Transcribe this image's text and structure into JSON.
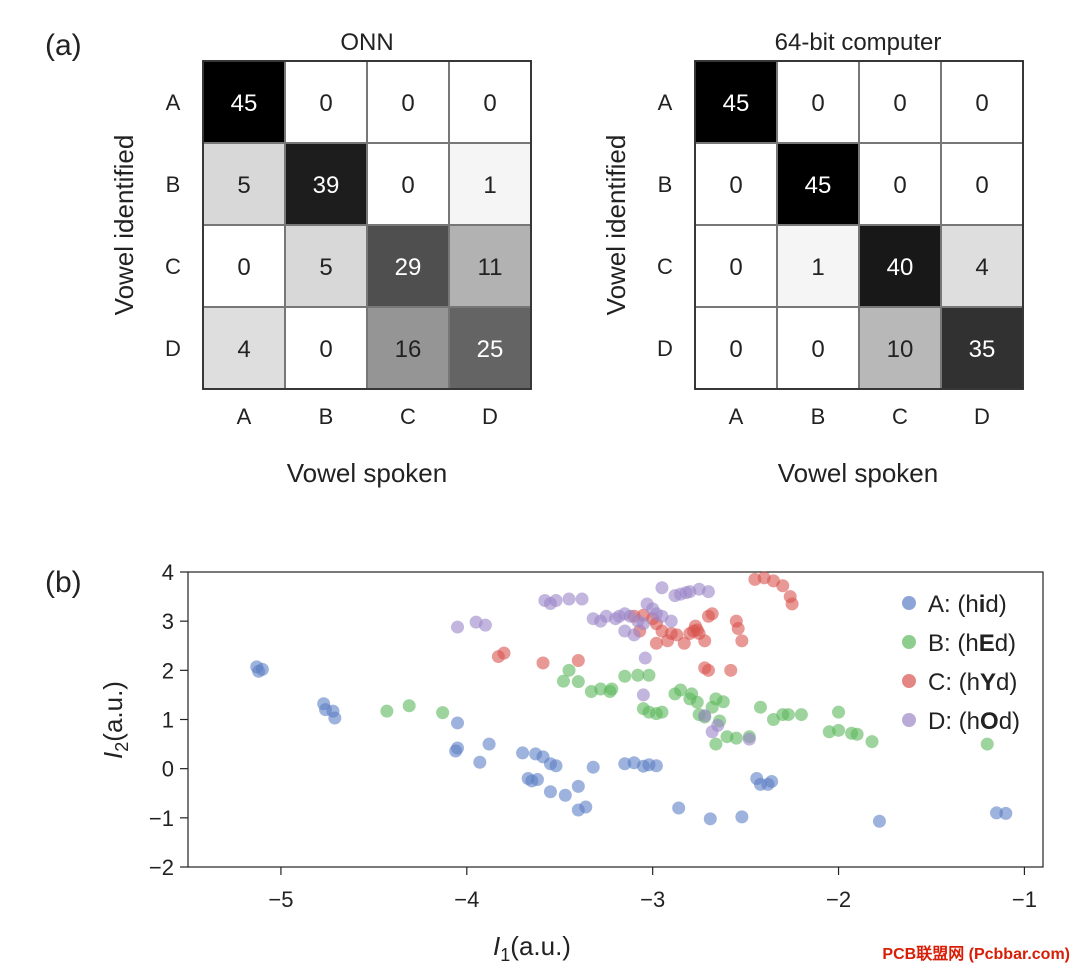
{
  "watermark": "PCB联盟网 (Pcbbar.com)",
  "chart_data": [
    {
      "type": "heatmap",
      "panel_label": "(a)",
      "title": "ONN",
      "xlabel": "Vowel spoken",
      "ylabel": "Vowel identified",
      "x_categories": [
        "A",
        "B",
        "C",
        "D"
      ],
      "y_categories": [
        "A",
        "B",
        "C",
        "D"
      ],
      "values": [
        [
          45,
          0,
          0,
          0
        ],
        [
          5,
          39,
          0,
          1
        ],
        [
          0,
          5,
          29,
          11
        ],
        [
          4,
          0,
          16,
          25
        ]
      ],
      "max_value": 45
    },
    {
      "type": "heatmap",
      "title": "64-bit computer",
      "xlabel": "Vowel spoken",
      "ylabel": "Vowel identified",
      "x_categories": [
        "A",
        "B",
        "C",
        "D"
      ],
      "y_categories": [
        "A",
        "B",
        "C",
        "D"
      ],
      "values": [
        [
          45,
          0,
          0,
          0
        ],
        [
          0,
          45,
          0,
          0
        ],
        [
          0,
          1,
          40,
          4
        ],
        [
          0,
          0,
          10,
          35
        ]
      ],
      "max_value": 45
    },
    {
      "type": "scatter",
      "panel_label": "(b)",
      "xlabel_main": "I",
      "xlabel_sub": "1",
      "xlabel_rest": "(a.u.)",
      "ylabel_main": "I",
      "ylabel_sub": "2",
      "ylabel_rest": "(a.u.)",
      "xlim": [
        -5.5,
        -0.9
      ],
      "ylim": [
        -2,
        4
      ],
      "xticks": [
        -5,
        -4,
        -3,
        -2,
        -1
      ],
      "yticks": [
        -2,
        -1,
        0,
        1,
        2,
        3,
        4
      ],
      "legend_position": "top-right",
      "series": [
        {
          "name": "A: (hid)",
          "name_parts": [
            "A: (h",
            "i",
            "d)"
          ],
          "color": "#5b7fc4",
          "points": [
            [
              -5.13,
              2.07
            ],
            [
              -5.1,
              2.02
            ],
            [
              -5.12,
              1.98
            ],
            [
              -4.77,
              1.32
            ],
            [
              -4.76,
              1.2
            ],
            [
              -4.72,
              1.17
            ],
            [
              -4.71,
              1.03
            ],
            [
              -4.05,
              0.42
            ],
            [
              -4.06,
              0.36
            ],
            [
              -4.05,
              0.93
            ],
            [
              -3.88,
              0.5
            ],
            [
              -3.93,
              0.13
            ],
            [
              -3.7,
              0.32
            ],
            [
              -3.63,
              0.3
            ],
            [
              -3.59,
              0.24
            ],
            [
              -3.55,
              0.1
            ],
            [
              -3.52,
              0.06
            ],
            [
              -3.67,
              -0.2
            ],
            [
              -3.65,
              -0.25
            ],
            [
              -3.62,
              -0.22
            ],
            [
              -3.55,
              -0.47
            ],
            [
              -3.47,
              -0.54
            ],
            [
              -3.4,
              -0.36
            ],
            [
              -3.36,
              -0.78
            ],
            [
              -3.4,
              -0.84
            ],
            [
              -3.32,
              0.03
            ],
            [
              -3.15,
              0.1
            ],
            [
              -3.1,
              0.12
            ],
            [
              -3.05,
              0.05
            ],
            [
              -3.02,
              0.08
            ],
            [
              -2.98,
              0.06
            ],
            [
              -2.86,
              -0.8
            ],
            [
              -2.69,
              -1.02
            ],
            [
              -2.52,
              -0.98
            ],
            [
              -2.44,
              -0.2
            ],
            [
              -2.42,
              -0.32
            ],
            [
              -2.38,
              -0.32
            ],
            [
              -2.36,
              -0.26
            ],
            [
              -1.78,
              -1.07
            ],
            [
              -1.15,
              -0.9
            ],
            [
              -1.1,
              -0.91
            ]
          ]
        },
        {
          "name": "B: (hEd)",
          "name_parts": [
            "B: (h",
            "E",
            "d)"
          ],
          "color": "#5cb85c",
          "points": [
            [
              -4.43,
              1.17
            ],
            [
              -4.31,
              1.28
            ],
            [
              -4.13,
              1.14
            ],
            [
              -3.48,
              1.78
            ],
            [
              -3.45,
              2.0
            ],
            [
              -3.4,
              1.77
            ],
            [
              -3.33,
              1.57
            ],
            [
              -3.28,
              1.62
            ],
            [
              -3.23,
              1.57
            ],
            [
              -3.22,
              1.62
            ],
            [
              -3.15,
              1.88
            ],
            [
              -3.08,
              1.9
            ],
            [
              -3.02,
              1.9
            ],
            [
              -3.05,
              1.22
            ],
            [
              -2.98,
              1.12
            ],
            [
              -3.02,
              1.15
            ],
            [
              -2.95,
              1.15
            ],
            [
              -2.88,
              1.52
            ],
            [
              -2.85,
              1.6
            ],
            [
              -2.79,
              1.52
            ],
            [
              -2.8,
              1.42
            ],
            [
              -2.76,
              1.35
            ],
            [
              -2.72,
              1.05
            ],
            [
              -2.75,
              1.1
            ],
            [
              -2.68,
              1.25
            ],
            [
              -2.66,
              1.42
            ],
            [
              -2.62,
              1.36
            ],
            [
              -2.64,
              0.97
            ],
            [
              -2.6,
              0.65
            ],
            [
              -2.66,
              0.5
            ],
            [
              -2.55,
              0.62
            ],
            [
              -2.48,
              0.65
            ],
            [
              -2.42,
              1.25
            ],
            [
              -2.35,
              1.0
            ],
            [
              -2.3,
              1.1
            ],
            [
              -2.27,
              1.1
            ],
            [
              -2.2,
              1.1
            ],
            [
              -2.05,
              0.75
            ],
            [
              -2.0,
              0.78
            ],
            [
              -2.0,
              1.15
            ],
            [
              -1.93,
              0.72
            ],
            [
              -1.9,
              0.7
            ],
            [
              -1.82,
              0.55
            ],
            [
              -1.2,
              0.5
            ]
          ]
        },
        {
          "name": "C: (hYd)",
          "name_parts": [
            "C: (h",
            "Y",
            "d)"
          ],
          "color": "#d9534f",
          "points": [
            [
              -3.8,
              2.35
            ],
            [
              -3.83,
              2.28
            ],
            [
              -3.59,
              2.15
            ],
            [
              -3.4,
              2.2
            ],
            [
              -3.1,
              3.1
            ],
            [
              -3.05,
              3.12
            ],
            [
              -3.0,
              3.05
            ],
            [
              -2.98,
              2.95
            ],
            [
              -2.95,
              2.8
            ],
            [
              -2.9,
              2.75
            ],
            [
              -2.87,
              2.72
            ],
            [
              -2.8,
              2.75
            ],
            [
              -2.78,
              2.8
            ],
            [
              -2.76,
              2.82
            ],
            [
              -2.77,
              2.9
            ],
            [
              -2.75,
              2.75
            ],
            [
              -2.72,
              2.6
            ],
            [
              -2.7,
              3.1
            ],
            [
              -2.68,
              3.15
            ],
            [
              -2.72,
              2.05
            ],
            [
              -2.7,
              2.0
            ],
            [
              -2.58,
              2.0
            ],
            [
              -2.55,
              3.0
            ],
            [
              -2.54,
              2.85
            ],
            [
              -2.52,
              2.6
            ],
            [
              -2.45,
              3.85
            ],
            [
              -2.4,
              3.88
            ],
            [
              -2.35,
              3.82
            ],
            [
              -2.3,
              3.72
            ],
            [
              -2.26,
              3.5
            ],
            [
              -2.25,
              3.35
            ],
            [
              -2.83,
              2.55
            ],
            [
              -2.92,
              2.6
            ],
            [
              -2.98,
              2.55
            ],
            [
              -3.07,
              2.8
            ]
          ]
        },
        {
          "name": "D: (hOd)",
          "name_parts": [
            "D: (h",
            "O",
            "d)"
          ],
          "color": "#9b86c8",
          "points": [
            [
              -4.05,
              2.88
            ],
            [
              -3.95,
              2.98
            ],
            [
              -3.9,
              2.92
            ],
            [
              -3.58,
              3.42
            ],
            [
              -3.55,
              3.36
            ],
            [
              -3.52,
              3.42
            ],
            [
              -3.45,
              3.45
            ],
            [
              -3.38,
              3.45
            ],
            [
              -3.32,
              3.05
            ],
            [
              -3.28,
              3.0
            ],
            [
              -3.25,
              3.1
            ],
            [
              -3.2,
              3.05
            ],
            [
              -3.18,
              3.1
            ],
            [
              -3.15,
              3.15
            ],
            [
              -3.12,
              3.1
            ],
            [
              -3.08,
              3.0
            ],
            [
              -3.05,
              2.95
            ],
            [
              -3.03,
              3.35
            ],
            [
              -3.0,
              3.25
            ],
            [
              -2.98,
              3.15
            ],
            [
              -2.95,
              3.1
            ],
            [
              -2.9,
              3.0
            ],
            [
              -2.88,
              3.52
            ],
            [
              -2.85,
              3.55
            ],
            [
              -2.82,
              3.58
            ],
            [
              -2.8,
              3.6
            ],
            [
              -2.75,
              3.65
            ],
            [
              -2.7,
              3.6
            ],
            [
              -2.95,
              3.68
            ],
            [
              -3.04,
              2.25
            ],
            [
              -3.05,
              1.5
            ],
            [
              -2.72,
              1.08
            ],
            [
              -2.68,
              0.75
            ],
            [
              -2.65,
              0.88
            ],
            [
              -2.48,
              0.6
            ],
            [
              -3.1,
              2.72
            ],
            [
              -3.15,
              2.8
            ]
          ]
        }
      ]
    }
  ]
}
